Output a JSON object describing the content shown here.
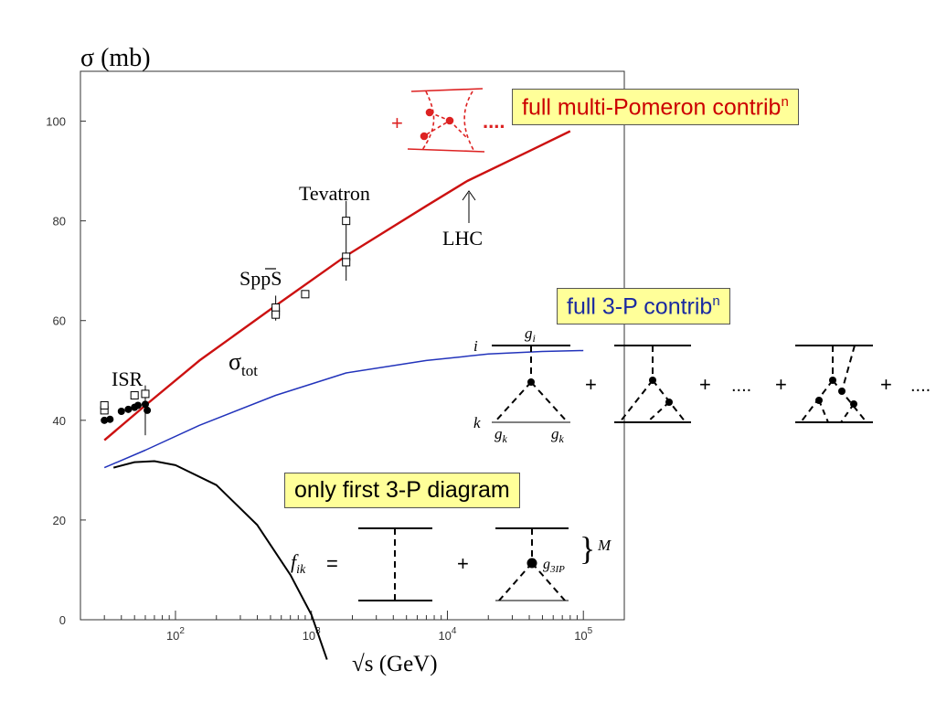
{
  "chart_data": {
    "type": "line",
    "title": "",
    "ylabel": "σ (mb)",
    "xlabel": "√s (GeV)",
    "xscale": "log",
    "xlim": [
      20,
      200000
    ],
    "ylim": [
      0,
      110
    ],
    "yticks": [
      "0",
      "20",
      "40",
      "60",
      "80",
      "100"
    ],
    "xticks": [
      {
        "base": "10",
        "exp": "2"
      },
      {
        "base": "10",
        "exp": "3"
      },
      {
        "base": "10",
        "exp": "4"
      },
      {
        "base": "10",
        "exp": "5"
      }
    ],
    "series": [
      {
        "color": "#cc1111",
        "x": [
          30,
          60,
          150,
          546,
          1800,
          7000,
          14000,
          40000,
          80000
        ],
        "y": [
          36,
          43,
          52,
          63,
          73,
          83,
          88,
          94,
          98
        ]
      },
      {
        "color": "#2233bb",
        "x": [
          30,
          60,
          150,
          546,
          1800,
          7000,
          20000,
          50000,
          100000
        ],
        "y": [
          30.5,
          34,
          39,
          45,
          49.5,
          52,
          53.3,
          53.8,
          54
        ]
      },
      {
        "color": "#000000",
        "x": [
          35,
          50,
          70,
          100,
          200,
          400,
          700,
          1000,
          1300
        ],
        "y": [
          30.5,
          31.6,
          31.8,
          31,
          27,
          19,
          9,
          1,
          -8
        ]
      }
    ],
    "data_points": {
      "filled": [
        {
          "x": 30,
          "y": 40
        },
        {
          "x": 33,
          "y": 40.2
        },
        {
          "x": 40,
          "y": 41.8
        },
        {
          "x": 45,
          "y": 42.2
        },
        {
          "x": 50,
          "y": 42.6
        },
        {
          "x": 53,
          "y": 43
        },
        {
          "x": 60,
          "y": 43.2
        },
        {
          "x": 62,
          "y": 42
        }
      ],
      "open": [
        {
          "x": 30,
          "y": 42
        },
        {
          "x": 30,
          "y": 43
        },
        {
          "x": 50,
          "y": 45
        },
        {
          "x": 60,
          "y": 45.3
        },
        {
          "x": 546,
          "y": 61.8
        },
        {
          "x": 546,
          "y": 62.6
        },
        {
          "x": 546,
          "y": 61.2
        },
        {
          "x": 900,
          "y": 65.3
        },
        {
          "x": 1800,
          "y": 80
        },
        {
          "x": 1800,
          "y": 72.8
        },
        {
          "x": 1800,
          "y": 71.7
        }
      ],
      "error_bars": [
        {
          "x": 60,
          "y1": 37,
          "y2": 47
        },
        {
          "x": 546,
          "y1": 60,
          "y2": 65
        },
        {
          "x": 1800,
          "y1": 68,
          "y2": 84
        }
      ]
    },
    "annotations": {
      "isr": "ISR",
      "sppbars": "SppS",
      "tevatron": "Tevatron",
      "lhc": "LHC",
      "sigma_tot_symbol": "σ",
      "sigma_tot_sub": "tot"
    }
  },
  "labels": {
    "box_red": {
      "text": "full multi-Pomeron contrib",
      "sup": "n",
      "color": "#cc0000"
    },
    "box_blue": {
      "text": "full 3-P contrib",
      "sup": "n",
      "color": "#1a2aa0"
    },
    "box_black": {
      "text": "only first 3-P diagram",
      "color": "#000000"
    }
  },
  "diagram_3p": {
    "i": "i",
    "k": "k",
    "g": "g",
    "sub_i": "i",
    "sub_k": "k",
    "plus": "+",
    "dots": "....",
    "trailing": "...."
  },
  "diagram_fik": {
    "f": "f",
    "sub": "ik",
    "eq": "=",
    "plus": "+",
    "coupling": "g",
    "coupling_sub": "3IP",
    "M": "M",
    "brace": "}"
  },
  "diagram_red": {
    "plus": "+",
    "dots": "...."
  }
}
